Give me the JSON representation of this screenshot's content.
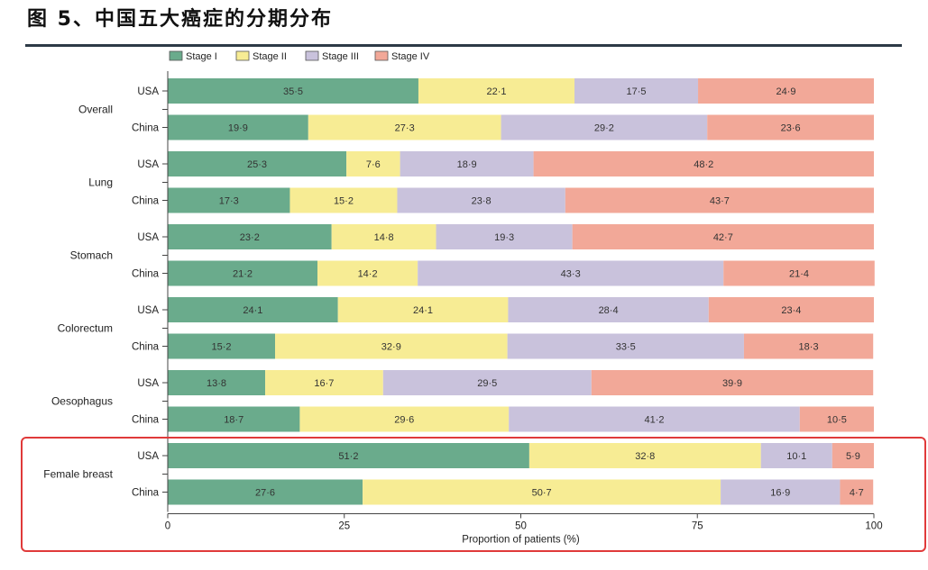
{
  "title": "图 5、中国五大癌症的分期分布",
  "colors": {
    "stage_1": "#6aab8c",
    "stage_2": "#f7ec94",
    "stage_3": "#c9c2dc",
    "stage_4": "#f2a898",
    "highlight_box": "#e03a3a"
  },
  "chart_data": {
    "type": "bar",
    "orientation": "horizontal",
    "stacked": true,
    "title": "图 5、中国五大癌症的分期分布",
    "xlabel": "Proportion of patients (%)",
    "ylabel": "",
    "xlim": [
      0,
      100
    ],
    "xticks": [
      "0",
      "25",
      "50",
      "75",
      "100"
    ],
    "legend": [
      "Stage I",
      "Stage II",
      "Stage III",
      "Stage IV"
    ],
    "legend_position": "top-left",
    "groups": [
      {
        "name": "Overall",
        "rows": [
          {
            "country": "USA",
            "values": [
              35.5,
              22.1,
              17.5,
              24.9
            ],
            "labels": [
              "35·5",
              "22·1",
              "17·5",
              "24·9"
            ]
          },
          {
            "country": "China",
            "values": [
              19.9,
              27.3,
              29.2,
              23.6
            ],
            "labels": [
              "19·9",
              "27·3",
              "29·2",
              "23·6"
            ]
          }
        ]
      },
      {
        "name": "Lung",
        "rows": [
          {
            "country": "USA",
            "values": [
              25.3,
              7.6,
              18.9,
              48.2
            ],
            "labels": [
              "25·3",
              "7·6",
              "18·9",
              "48·2"
            ]
          },
          {
            "country": "China",
            "values": [
              17.3,
              15.2,
              23.8,
              43.7
            ],
            "labels": [
              "17·3",
              "15·2",
              "23·8",
              "43·7"
            ]
          }
        ]
      },
      {
        "name": "Stomach",
        "rows": [
          {
            "country": "USA",
            "values": [
              23.2,
              14.8,
              19.3,
              42.7
            ],
            "labels": [
              "23·2",
              "14·8",
              "19·3",
              "42·7"
            ]
          },
          {
            "country": "China",
            "values": [
              21.2,
              14.2,
              43.3,
              21.4
            ],
            "labels": [
              "21·2",
              "14·2",
              "43·3",
              "21·4"
            ]
          }
        ]
      },
      {
        "name": "Colorectum",
        "rows": [
          {
            "country": "USA",
            "values": [
              24.1,
              24.1,
              28.4,
              23.4
            ],
            "labels": [
              "24·1",
              "24·1",
              "28·4",
              "23·4"
            ]
          },
          {
            "country": "China",
            "values": [
              15.2,
              32.9,
              33.5,
              18.3
            ],
            "labels": [
              "15·2",
              "32·9",
              "33·5",
              "18·3"
            ]
          }
        ]
      },
      {
        "name": "Oesophagus",
        "rows": [
          {
            "country": "USA",
            "values": [
              13.8,
              16.7,
              29.5,
              39.9
            ],
            "labels": [
              "13·8",
              "16·7",
              "29·5",
              "39·9"
            ]
          },
          {
            "country": "China",
            "values": [
              18.7,
              29.6,
              41.2,
              10.5
            ],
            "labels": [
              "18·7",
              "29·6",
              "41·2",
              "10·5"
            ]
          }
        ]
      },
      {
        "name": "Female breast",
        "highlighted": true,
        "rows": [
          {
            "country": "USA",
            "values": [
              51.2,
              32.8,
              10.1,
              5.9
            ],
            "labels": [
              "51·2",
              "32·8",
              "10·1",
              "5·9"
            ]
          },
          {
            "country": "China",
            "values": [
              27.6,
              50.7,
              16.9,
              4.7
            ],
            "labels": [
              "27·6",
              "50·7",
              "16·9",
              "4·7"
            ]
          }
        ]
      }
    ]
  }
}
